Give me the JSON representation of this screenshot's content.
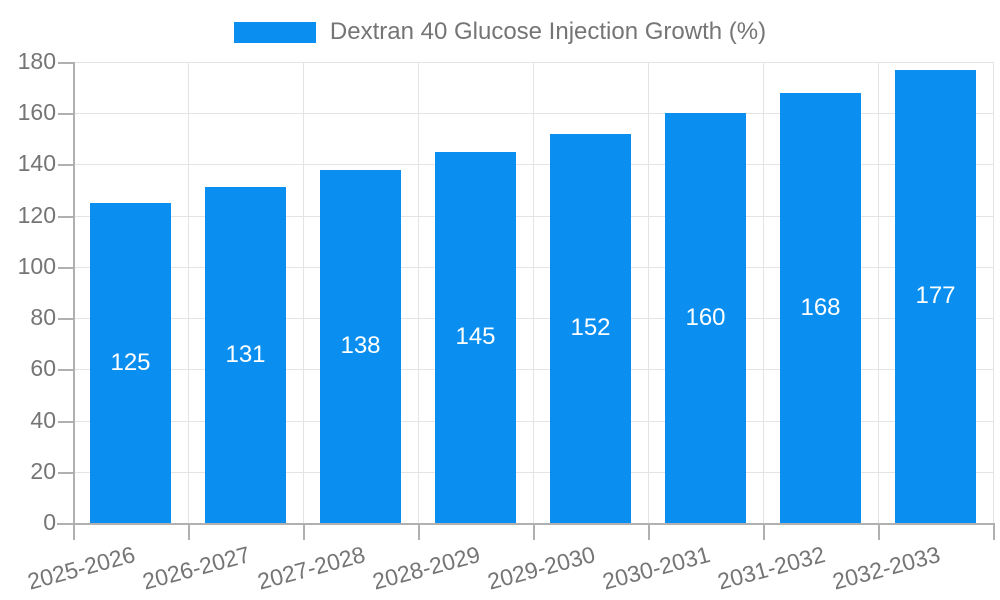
{
  "legend": {
    "label": "Dextran 40 Glucose Injection Growth (%)"
  },
  "chart_data": {
    "type": "bar",
    "title": "Dextran 40 Glucose Injection Growth (%)",
    "series_name": "Dextran 40 Glucose Injection Growth (%)",
    "categories": [
      "2025-2026",
      "2026-2027",
      "2027-2028",
      "2028-2029",
      "2029-2030",
      "2030-2031",
      "2031-2032",
      "2032-2033"
    ],
    "values": [
      125,
      131,
      138,
      145,
      152,
      160,
      168,
      177
    ],
    "y_ticks": [
      0,
      20,
      40,
      60,
      80,
      100,
      120,
      140,
      160,
      180
    ],
    "ylim": [
      0,
      180
    ],
    "xlabel": "",
    "ylabel": "",
    "grid": true,
    "legend_position": "top-center",
    "x_label_rotation_deg": -15,
    "value_labels_inside_bars": true,
    "colors": {
      "bar": "#0a8ff0",
      "value_label": "#ffffff",
      "axis_text": "#757575",
      "grid_line": "#e4e4e4",
      "axis_line": "#b0b0b0",
      "background": "#ffffff"
    }
  }
}
